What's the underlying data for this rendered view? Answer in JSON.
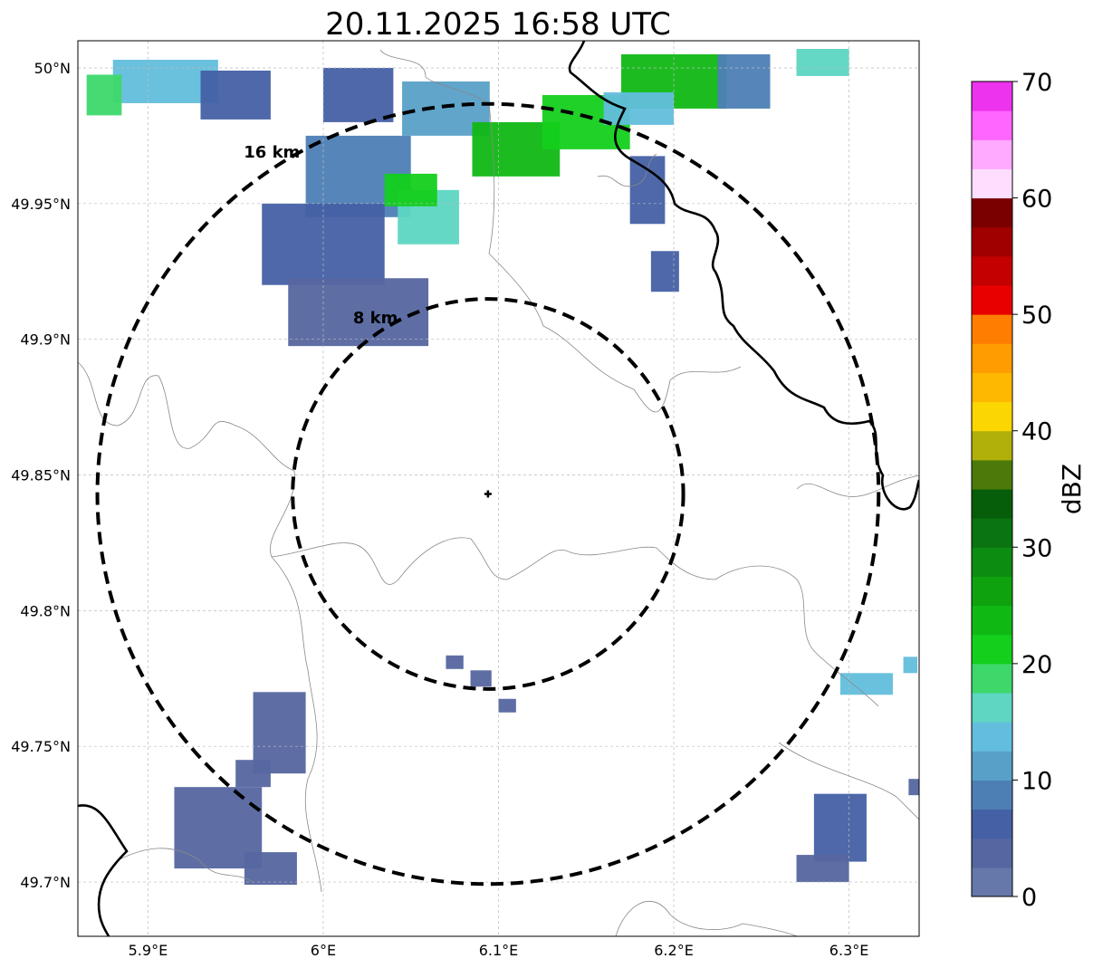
{
  "title": "20.11.2025 16:58 UTC",
  "axes": {
    "x_ticks": [
      {
        "value": 5.9,
        "label": "5.9°E"
      },
      {
        "value": 6.0,
        "label": "6°E"
      },
      {
        "value": 6.1,
        "label": "6.1°E"
      },
      {
        "value": 6.2,
        "label": "6.2°E"
      },
      {
        "value": 6.3,
        "label": "6.3°E"
      }
    ],
    "y_ticks": [
      {
        "value": 50.0,
        "label": "50°N"
      },
      {
        "value": 49.95,
        "label": "49.95°N"
      },
      {
        "value": 49.9,
        "label": "49.9°N"
      },
      {
        "value": 49.85,
        "label": "49.85°N"
      },
      {
        "value": 49.8,
        "label": "49.8°N"
      },
      {
        "value": 49.75,
        "label": "49.75°N"
      },
      {
        "value": 49.7,
        "label": "49.7°N"
      }
    ],
    "lon_range": [
      5.86,
      6.34
    ],
    "lat_range": [
      49.68,
      50.01
    ],
    "grid": true
  },
  "rings": [
    {
      "radius_km": 16,
      "label": "16 km"
    },
    {
      "radius_km": 8,
      "label": "8 km"
    }
  ],
  "radar_site": {
    "lon": 6.094,
    "lat": 49.843
  },
  "colorbar": {
    "label": "dBZ",
    "min": 0,
    "max": 70,
    "ticks": [
      "0",
      "10",
      "20",
      "30",
      "40",
      "50",
      "60",
      "70"
    ],
    "colors": [
      "#6677aa",
      "#5566a0",
      "#4560a5",
      "#4d7fb5",
      "#58a0c8",
      "#62bedc",
      "#5dd6c2",
      "#3ed86a",
      "#14cf1c",
      "#10b814",
      "#0ea20f",
      "#0c8c10",
      "#0a7410",
      "#065e0a",
      "#4b7a0a",
      "#b0b00a",
      "#fcd600",
      "#ffb800",
      "#ff9c00",
      "#ff7d00",
      "#e80000",
      "#c40000",
      "#a00000",
      "#7a0000",
      "#ffddff",
      "#ffaaff",
      "#ff66ff",
      "#ee33ee"
    ]
  },
  "chart_data": {
    "type": "heatmap",
    "title": "20.11.2025 16:58 UTC",
    "xlabel": "",
    "ylabel": "",
    "xlim": [
      5.86,
      6.34
    ],
    "ylim": [
      49.68,
      50.01
    ],
    "colorbar_label": "dBZ",
    "value_range": [
      0,
      70
    ],
    "echo_cells": [
      {
        "lon": 5.91,
        "lat": 49.995,
        "w": 0.06,
        "h": 0.016,
        "dbz": 13
      },
      {
        "lon": 5.95,
        "lat": 49.99,
        "w": 0.04,
        "h": 0.018,
        "dbz": 7
      },
      {
        "lon": 5.875,
        "lat": 49.99,
        "w": 0.02,
        "h": 0.015,
        "dbz": 19
      },
      {
        "lon": 6.02,
        "lat": 49.99,
        "w": 0.04,
        "h": 0.02,
        "dbz": 6
      },
      {
        "lon": 6.07,
        "lat": 49.985,
        "w": 0.05,
        "h": 0.02,
        "dbz": 11
      },
      {
        "lon": 6.02,
        "lat": 49.96,
        "w": 0.06,
        "h": 0.03,
        "dbz": 8
      },
      {
        "lon": 6.0,
        "lat": 49.935,
        "w": 0.07,
        "h": 0.03,
        "dbz": 5
      },
      {
        "lon": 6.02,
        "lat": 49.91,
        "w": 0.08,
        "h": 0.025,
        "dbz": 4
      },
      {
        "lon": 6.06,
        "lat": 49.945,
        "w": 0.035,
        "h": 0.02,
        "dbz": 16
      },
      {
        "lon": 6.05,
        "lat": 49.955,
        "w": 0.03,
        "h": 0.012,
        "dbz": 22
      },
      {
        "lon": 6.11,
        "lat": 49.97,
        "w": 0.05,
        "h": 0.02,
        "dbz": 23
      },
      {
        "lon": 6.15,
        "lat": 49.98,
        "w": 0.05,
        "h": 0.02,
        "dbz": 22
      },
      {
        "lon": 6.2,
        "lat": 49.995,
        "w": 0.06,
        "h": 0.02,
        "dbz": 24
      },
      {
        "lon": 6.18,
        "lat": 49.985,
        "w": 0.04,
        "h": 0.012,
        "dbz": 14
      },
      {
        "lon": 6.185,
        "lat": 49.955,
        "w": 0.02,
        "h": 0.025,
        "dbz": 5
      },
      {
        "lon": 6.195,
        "lat": 49.925,
        "w": 0.016,
        "h": 0.015,
        "dbz": 7
      },
      {
        "lon": 6.285,
        "lat": 50.002,
        "w": 0.03,
        "h": 0.01,
        "dbz": 15
      },
      {
        "lon": 6.24,
        "lat": 49.995,
        "w": 0.03,
        "h": 0.02,
        "dbz": 8
      },
      {
        "lon": 6.09,
        "lat": 49.775,
        "w": 0.012,
        "h": 0.006,
        "dbz": 3
      },
      {
        "lon": 6.075,
        "lat": 49.781,
        "w": 0.01,
        "h": 0.005,
        "dbz": 3
      },
      {
        "lon": 6.105,
        "lat": 49.765,
        "w": 0.01,
        "h": 0.005,
        "dbz": 3
      },
      {
        "lon": 5.975,
        "lat": 49.755,
        "w": 0.03,
        "h": 0.03,
        "dbz": 4
      },
      {
        "lon": 5.96,
        "lat": 49.74,
        "w": 0.02,
        "h": 0.01,
        "dbz": 3
      },
      {
        "lon": 5.94,
        "lat": 49.72,
        "w": 0.05,
        "h": 0.03,
        "dbz": 4
      },
      {
        "lon": 5.97,
        "lat": 49.705,
        "w": 0.03,
        "h": 0.012,
        "dbz": 3
      },
      {
        "lon": 6.295,
        "lat": 49.72,
        "w": 0.03,
        "h": 0.025,
        "dbz": 5
      },
      {
        "lon": 6.285,
        "lat": 49.705,
        "w": 0.03,
        "h": 0.01,
        "dbz": 3
      },
      {
        "lon": 6.31,
        "lat": 49.773,
        "w": 0.03,
        "h": 0.008,
        "dbz": 13
      },
      {
        "lon": 6.335,
        "lat": 49.78,
        "w": 0.008,
        "h": 0.006,
        "dbz": 14
      },
      {
        "lon": 6.337,
        "lat": 49.735,
        "w": 0.006,
        "h": 0.006,
        "dbz": 4
      }
    ]
  }
}
